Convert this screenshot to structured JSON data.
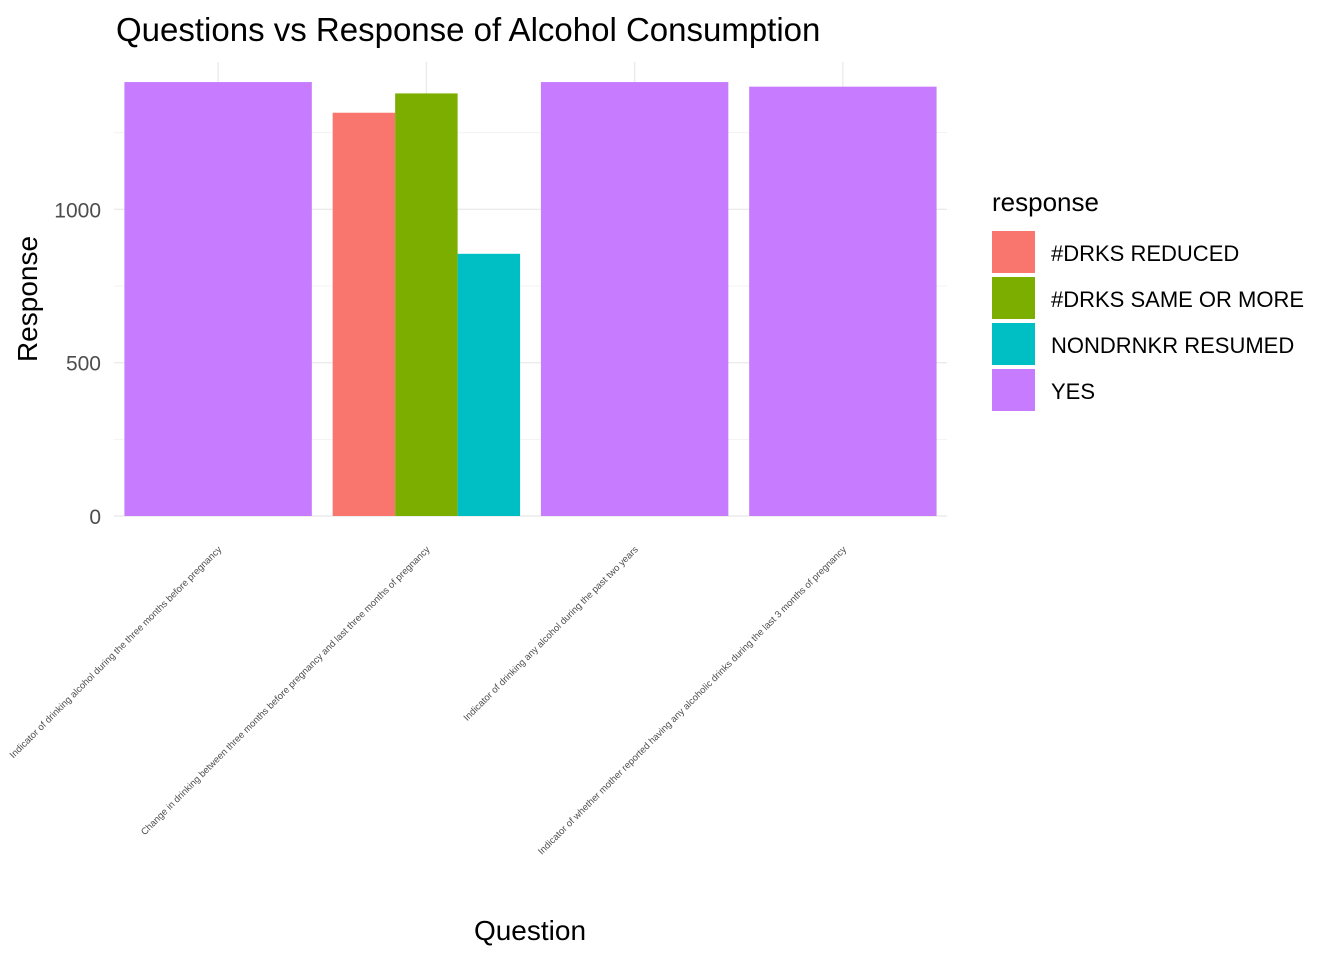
{
  "chart_data": {
    "type": "bar",
    "title": "Questions vs Response of Alcohol Consumption",
    "xlabel": "Question",
    "ylabel": "Response",
    "ylim": [
      0,
      1450
    ],
    "yticks": [
      0,
      500,
      1000
    ],
    "grid": true,
    "categories": [
      "Indicator of drinking alcohol during the three months before pregnancy",
      "Change in drinking between three months before pregnancy and last three months of pregnancy",
      "Indicator of drinking any alcohol during the past two years",
      "Indicator of whether mother reported having any alcoholic drinks during the last 3 months of pregnancy"
    ],
    "legend": {
      "title": "response",
      "position": "right",
      "entries": [
        {
          "name": "#DRKS REDUCED",
          "color": "#F8766D"
        },
        {
          "name": "#DRKS SAME OR MORE",
          "color": "#7CAE00"
        },
        {
          "name": "NONDRNKR RESUMED",
          "color": "#00BFC4"
        },
        {
          "name": "YES",
          "color": "#C77CFF"
        }
      ]
    },
    "series": [
      {
        "name": "#DRKS REDUCED",
        "values": [
          null,
          1315,
          null,
          null
        ]
      },
      {
        "name": "#DRKS SAME OR MORE",
        "values": [
          null,
          1378,
          null,
          null
        ]
      },
      {
        "name": "NONDRNKR RESUMED",
        "values": [
          null,
          855,
          null,
          null
        ]
      },
      {
        "name": "YES",
        "values": [
          1415,
          null,
          1415,
          1400
        ]
      }
    ]
  }
}
